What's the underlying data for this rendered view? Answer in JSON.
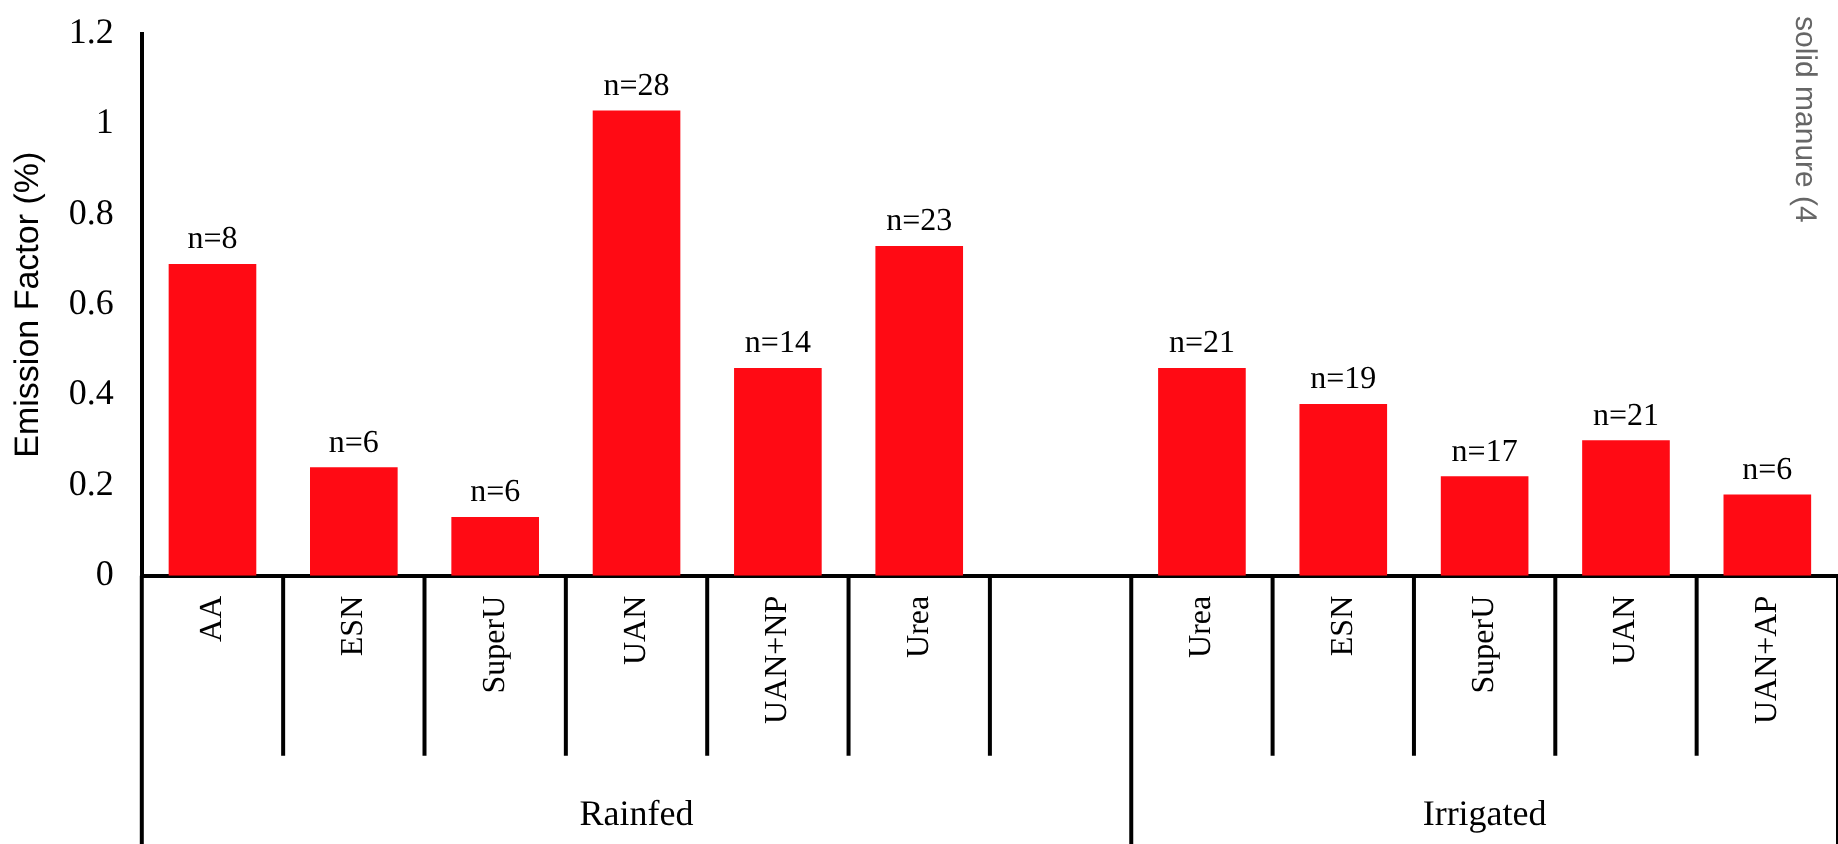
{
  "chart_data": {
    "type": "bar",
    "ylabel": "Emission Factor (%)",
    "categories": [
      "AA",
      "ESN",
      "SuperU",
      "UAN",
      "UAN+NP",
      "Urea",
      null,
      "Urea",
      "ESN",
      "SuperU",
      "UAN",
      "UAN+AP"
    ],
    "values": [
      0.69,
      0.24,
      0.13,
      1.03,
      0.46,
      0.73,
      null,
      0.46,
      0.38,
      0.22,
      0.3,
      0.18
    ],
    "color": "#ff0a14",
    "ylim": [
      0,
      1.2
    ],
    "yticks": [
      0,
      0.2,
      0.4,
      0.6,
      0.8,
      1,
      1.2
    ],
    "grid": false,
    "legend": false,
    "annotations": [
      "Rainfed",
      "Irrigated",
      "solid manure (4",
      {
        "text": "n=8",
        "x": "AA",
        "y": 0.69
      },
      {
        "text": "n=6",
        "x": "ESN",
        "y": 0.24
      },
      {
        "text": "n=6",
        "x": "SuperU",
        "y": 0.13
      },
      {
        "text": "n=28",
        "x": "UAN",
        "y": 1.03
      },
      {
        "text": "n=14",
        "x": "UAN+NP",
        "y": 0.46
      },
      {
        "text": "n=23",
        "x": "Urea",
        "y": 0.73
      },
      {
        "text": "n=21",
        "y": 0.46
      },
      {
        "text": "n=19",
        "y": 0.38
      },
      {
        "text": "n=17",
        "y": 0.22
      },
      {
        "text": "n=21",
        "y": 0.3
      },
      {
        "text": "n=6",
        "x": "UAN+AP",
        "y": 0.18
      }
    ]
  }
}
